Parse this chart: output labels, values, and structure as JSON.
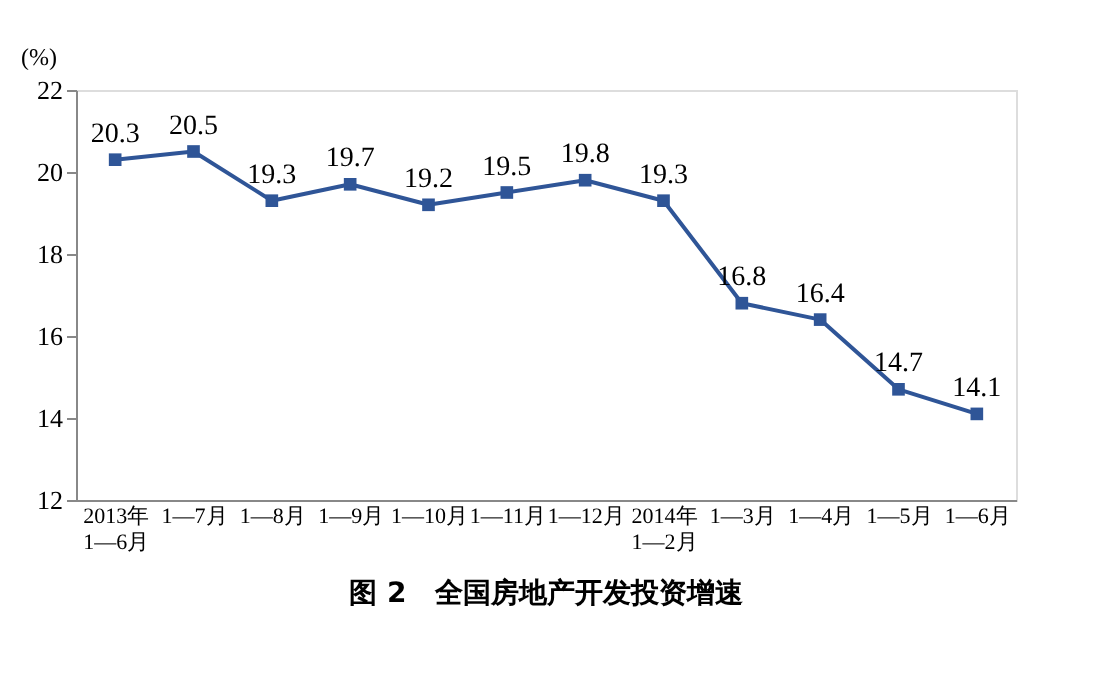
{
  "chart_data": {
    "type": "line",
    "title": "图 2　全国房地产开发投资增速",
    "ylabel": "(%)",
    "categories": [
      "2013年\n1—6月",
      "1—7月",
      "1—8月",
      "1—9月",
      "1—10月",
      "1—11月",
      "1—12月",
      "2014年\n1—2月",
      "1—3月",
      "1—4月",
      "1—5月",
      "1—6月"
    ],
    "series": [
      {
        "color": "#2f5597",
        "values": [
          20.3,
          20.5,
          19.3,
          19.7,
          19.2,
          19.5,
          19.8,
          19.3,
          16.8,
          16.4,
          14.7,
          14.1
        ]
      }
    ],
    "ylim": [
      12,
      22
    ],
    "yticks": [
      12,
      14,
      16,
      18,
      20,
      22
    ],
    "marker": "square",
    "line_style": "solid",
    "data_labels": true,
    "grid": false,
    "legend": false
  }
}
